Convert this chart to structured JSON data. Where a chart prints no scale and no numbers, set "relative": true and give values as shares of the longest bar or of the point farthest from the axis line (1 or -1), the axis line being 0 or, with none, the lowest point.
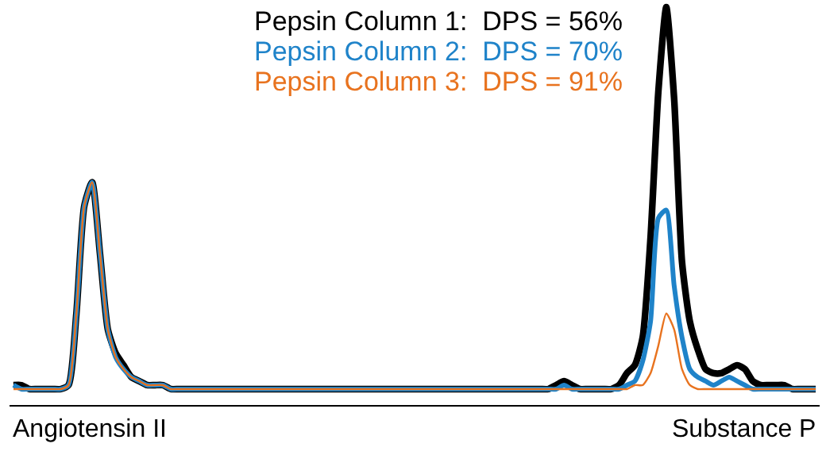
{
  "chart_data": {
    "type": "line",
    "relative": true,
    "legend": false,
    "marker": "none",
    "line_style": "solid",
    "categories": [
      null,
      null,
      null,
      null,
      null,
      null,
      null,
      null,
      null,
      null,
      null,
      null,
      null,
      null,
      null,
      null,
      null,
      null,
      null,
      null,
      null,
      null,
      null,
      null,
      null,
      null,
      null,
      null,
      null,
      null,
      null,
      null,
      null,
      null,
      null,
      null,
      null,
      null,
      null,
      null,
      null,
      null,
      null,
      null,
      null,
      null,
      null,
      null,
      null,
      null,
      null,
      null,
      null,
      null,
      null,
      null,
      null,
      null,
      null,
      null,
      null,
      null,
      null,
      null,
      null,
      null,
      null,
      null,
      null,
      null,
      null,
      null,
      null,
      null,
      null,
      null,
      null,
      null,
      null,
      null,
      null,
      null,
      null,
      null,
      null,
      null,
      null,
      null,
      null,
      null,
      null,
      null,
      null,
      null,
      null,
      null,
      null,
      null,
      null,
      null,
      null,
      null,
      null
    ],
    "series": [
      {
        "name": "Pepsin Column 1:  DPS = 56%",
        "color": "#000000",
        "values": [
          0.05,
          0.05,
          0.04,
          0.04,
          0.04,
          0.04,
          0.04,
          0.05,
          0.23,
          0.5,
          0.56,
          0.38,
          0.19,
          0.13,
          0.1,
          0.07,
          0.06,
          0.05,
          0.05,
          0.05,
          0.04,
          0.04,
          0.04,
          0.04,
          0.04,
          0.04,
          0.04,
          0.04,
          0.04,
          0.04,
          0.04,
          0.04,
          0.04,
          0.04,
          0.04,
          0.04,
          0.04,
          0.04,
          0.04,
          0.04,
          0.04,
          0.04,
          0.04,
          0.04,
          0.04,
          0.04,
          0.04,
          0.04,
          0.04,
          0.04,
          0.04,
          0.04,
          0.04,
          0.04,
          0.04,
          0.04,
          0.04,
          0.04,
          0.04,
          0.04,
          0.04,
          0.04,
          0.04,
          0.04,
          0.04,
          0.04,
          0.04,
          0.04,
          0.04,
          0.05,
          0.06,
          0.05,
          0.04,
          0.04,
          0.04,
          0.04,
          0.04,
          0.05,
          0.08,
          0.1,
          0.17,
          0.42,
          0.79,
          1.0,
          0.77,
          0.36,
          0.21,
          0.14,
          0.09,
          0.08,
          0.08,
          0.09,
          0.1,
          0.09,
          0.06,
          0.05,
          0.05,
          0.05,
          0.05,
          0.04,
          0.04,
          0.04,
          0.04
        ]
      },
      {
        "name": "Pepsin Column 2:  DPS = 70%",
        "color": "#1f83c9",
        "values": [
          0.05,
          0.04,
          0.04,
          0.04,
          0.04,
          0.04,
          0.04,
          0.05,
          0.23,
          0.5,
          0.56,
          0.38,
          0.19,
          0.12,
          0.09,
          0.07,
          0.06,
          0.05,
          0.05,
          0.05,
          0.04,
          0.04,
          0.04,
          0.04,
          0.04,
          0.04,
          0.04,
          0.04,
          0.04,
          0.04,
          0.04,
          0.04,
          0.04,
          0.04,
          0.04,
          0.04,
          0.04,
          0.04,
          0.04,
          0.04,
          0.04,
          0.04,
          0.04,
          0.04,
          0.04,
          0.04,
          0.04,
          0.04,
          0.04,
          0.04,
          0.04,
          0.04,
          0.04,
          0.04,
          0.04,
          0.04,
          0.04,
          0.04,
          0.04,
          0.04,
          0.04,
          0.04,
          0.04,
          0.04,
          0.04,
          0.04,
          0.04,
          0.04,
          0.04,
          0.04,
          0.05,
          0.04,
          0.04,
          0.04,
          0.04,
          0.04,
          0.04,
          0.04,
          0.05,
          0.06,
          0.11,
          0.21,
          0.47,
          0.49,
          0.3,
          0.17,
          0.09,
          0.07,
          0.06,
          0.05,
          0.06,
          0.07,
          0.06,
          0.05,
          0.04,
          0.04,
          0.04,
          0.04,
          0.04,
          0.04,
          0.04,
          0.04,
          0.04
        ]
      },
      {
        "name": "Pepsin Column 3:  DPS = 91%",
        "color": "#e8731f",
        "values": [
          0.04,
          0.04,
          0.04,
          0.04,
          0.04,
          0.04,
          0.04,
          0.05,
          0.23,
          0.5,
          0.56,
          0.38,
          0.19,
          0.12,
          0.09,
          0.07,
          0.06,
          0.05,
          0.05,
          0.05,
          0.04,
          0.04,
          0.04,
          0.04,
          0.04,
          0.04,
          0.04,
          0.04,
          0.04,
          0.04,
          0.04,
          0.04,
          0.04,
          0.04,
          0.04,
          0.04,
          0.04,
          0.04,
          0.04,
          0.04,
          0.04,
          0.04,
          0.04,
          0.04,
          0.04,
          0.04,
          0.04,
          0.04,
          0.04,
          0.04,
          0.04,
          0.04,
          0.04,
          0.04,
          0.04,
          0.04,
          0.04,
          0.04,
          0.04,
          0.04,
          0.04,
          0.04,
          0.04,
          0.04,
          0.04,
          0.04,
          0.04,
          0.04,
          0.04,
          0.04,
          0.04,
          0.04,
          0.04,
          0.04,
          0.04,
          0.04,
          0.04,
          0.04,
          0.04,
          0.05,
          0.05,
          0.08,
          0.15,
          0.23,
          0.19,
          0.09,
          0.05,
          0.04,
          0.04,
          0.04,
          0.04,
          0.04,
          0.04,
          0.04,
          0.04,
          0.04,
          0.04,
          0.04,
          0.04,
          0.04,
          0.04,
          0.04,
          0.04
        ]
      }
    ],
    "annotations": [
      "Angiotensin II",
      "Substance P"
    ]
  }
}
